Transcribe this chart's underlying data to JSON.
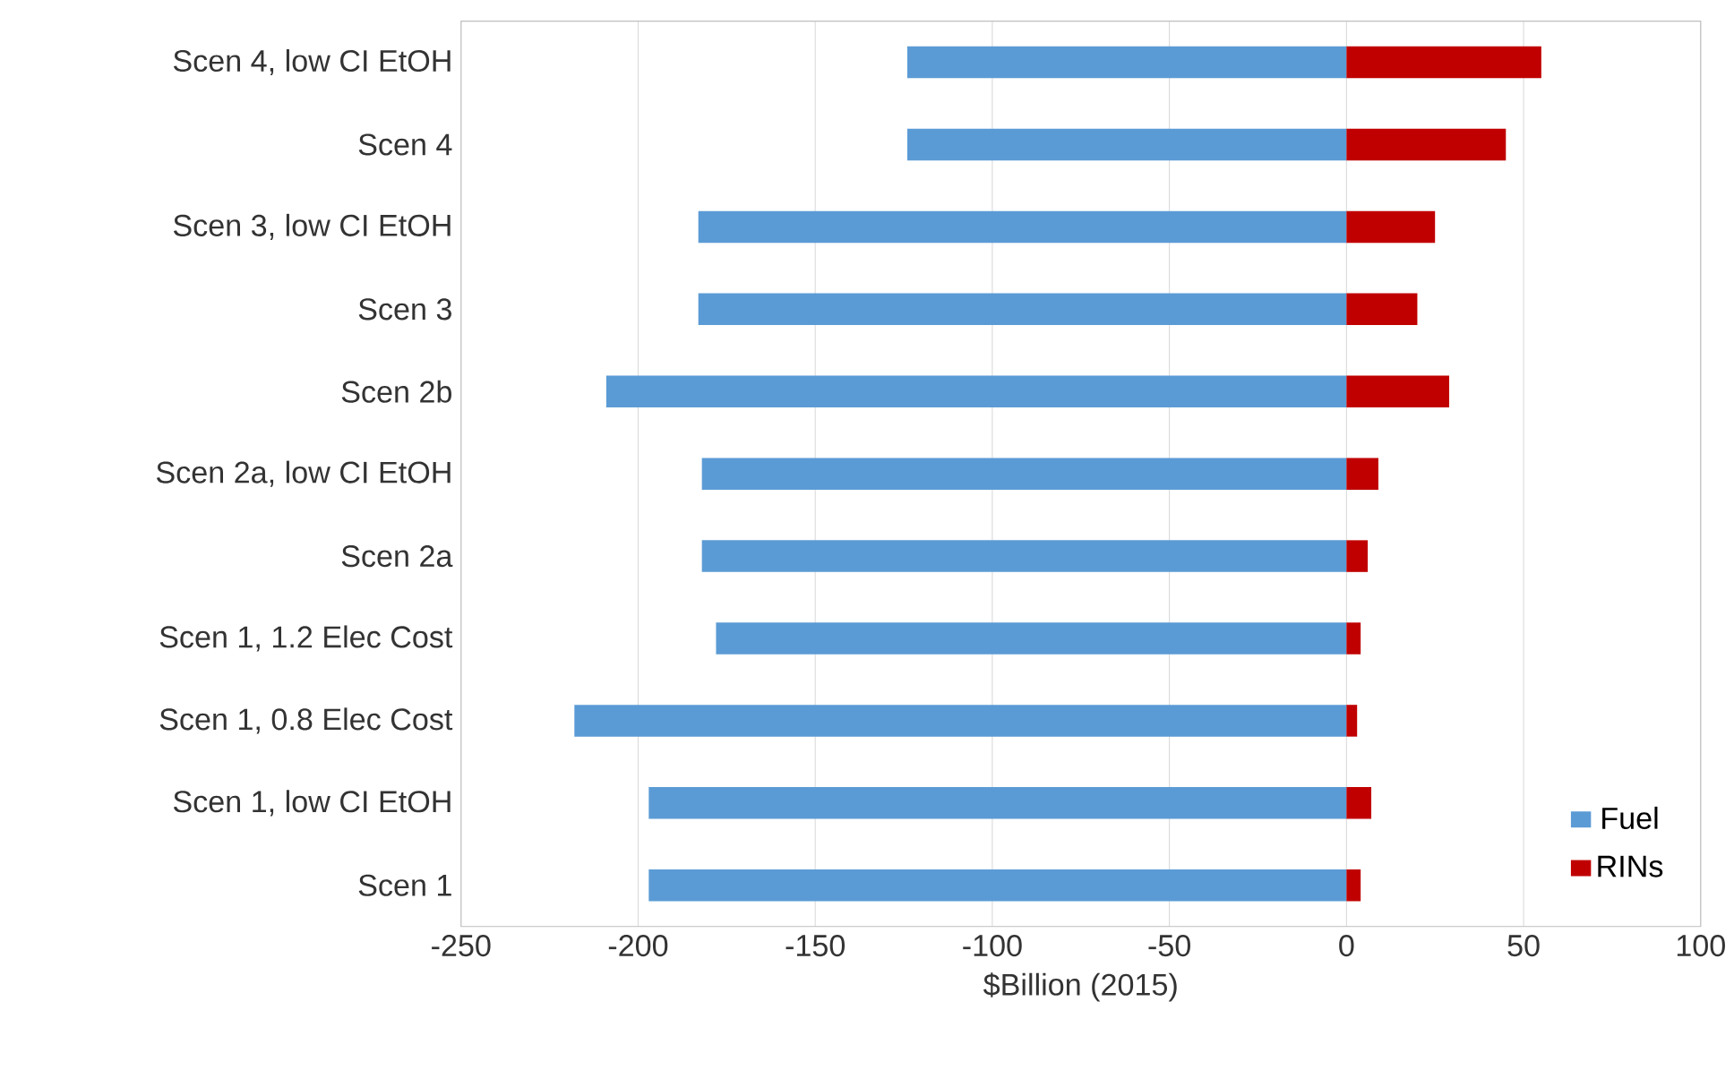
{
  "chart_data": {
    "type": "bar",
    "orientation": "horizontal",
    "stacked": true,
    "xlabel": "$Billion (2015)",
    "categories": [
      "Scen 4, low CI EtOH",
      "Scen 4",
      "Scen 3, low CI EtOH",
      "Scen 3",
      "Scen 2b",
      "Scen 2a, low CI EtOH",
      "Scen 2a",
      "Scen 1, 1.2 Elec Cost",
      "Scen 1, 0.8 Elec Cost",
      "Scen 1, low CI EtOH",
      "Scen 1"
    ],
    "series": [
      {
        "name": "Fuel",
        "color": "#5b9bd5",
        "values": [
          -124,
          -124,
          -183,
          -183,
          -209,
          -182,
          -182,
          -178,
          -218,
          -197,
          -197
        ]
      },
      {
        "name": "RINs",
        "color": "#c00000",
        "values": [
          55,
          45,
          25,
          20,
          29,
          9,
          6,
          4,
          3,
          7,
          4
        ]
      }
    ],
    "xlim": [
      -250,
      100
    ],
    "xticks": [
      -250,
      -200,
      -150,
      -100,
      -50,
      0,
      50,
      100
    ],
    "grid": "x",
    "legend": "bottom right"
  }
}
